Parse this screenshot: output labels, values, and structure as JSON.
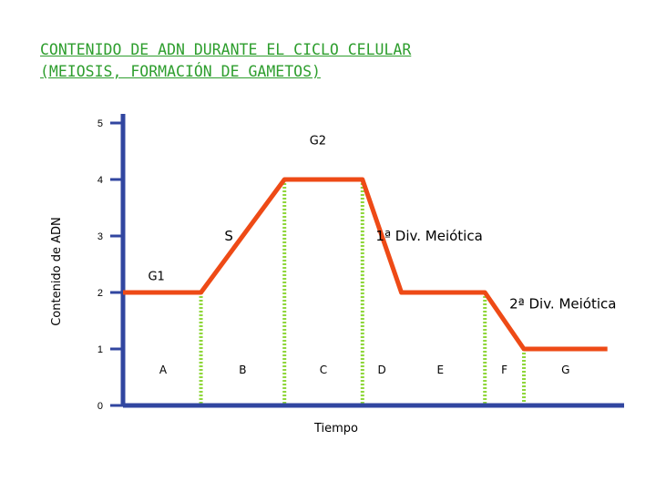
{
  "title": {
    "line1": "CONTENIDO DE ADN DURANTE EL CICLO CELULAR",
    "line2": "(MEIOSIS, FORMACIÓN DE GAMETOS)"
  },
  "colors": {
    "line": "#ee4a16",
    "axis": "#3146a0",
    "divider": "#8fd63a",
    "title": "#2e9e2e"
  },
  "chart_data": {
    "type": "line",
    "title": "CONTENIDO DE ADN DURANTE EL CICLO CELULAR (MEIOSIS, FORMACIÓN DE GAMETOS)",
    "xlabel": "Tiempo",
    "ylabel": "Contenido de ADN",
    "ylim": [
      0,
      5
    ],
    "yticks": [
      0,
      1,
      2,
      3,
      4,
      5
    ],
    "grid": false,
    "xlim": [
      0,
      9
    ],
    "series": [
      {
        "x": [
          0,
          1.4,
          2.9,
          4.3,
          5.0,
          6.5,
          7.2,
          8.7
        ],
        "y": [
          2,
          2,
          4,
          4,
          2,
          2,
          1,
          1
        ]
      }
    ],
    "phase_dividers": [
      1.4,
      2.9,
      4.3,
      6.5,
      7.2
    ],
    "phase_labels": [
      {
        "label": "A",
        "x": 0.72
      },
      {
        "label": "B",
        "x": 2.15
      },
      {
        "label": "C",
        "x": 3.6
      },
      {
        "label": "D",
        "x": 4.65
      },
      {
        "label": "E",
        "x": 5.7
      },
      {
        "label": "F",
        "x": 6.85
      },
      {
        "label": "G",
        "x": 7.95
      }
    ],
    "annotations": [
      {
        "label": "G2",
        "x": 3.5,
        "y": 4.7,
        "style": "ann"
      },
      {
        "label": "S",
        "x": 1.9,
        "y": 3.0,
        "style": "ann-big"
      },
      {
        "label": "1ª Div. Meiótica",
        "x": 5.5,
        "y": 3.0,
        "style": "ann-big"
      },
      {
        "label": "G1",
        "x": 0.6,
        "y": 2.3,
        "style": "ann"
      },
      {
        "label": "2ª Div. Meiótica",
        "x": 7.9,
        "y": 1.8,
        "style": "ann-big"
      }
    ]
  }
}
